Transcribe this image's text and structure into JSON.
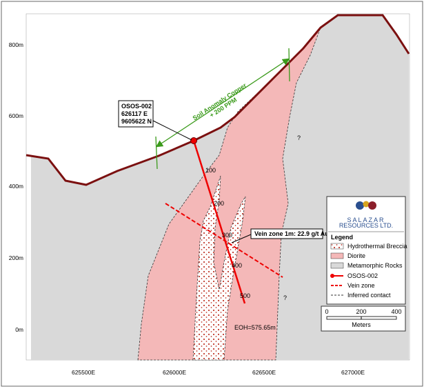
{
  "axes": {
    "y_labels": [
      "800m",
      "600m",
      "400m",
      "200m",
      "0m"
    ],
    "x_labels": [
      "625500E",
      "626000E",
      "626500E",
      "627000E"
    ]
  },
  "collar": {
    "lines": [
      "OSOS-002",
      "626117 E",
      "9605622 N"
    ]
  },
  "soil_anomaly": {
    "lines": [
      "Soil Anomaly Copper",
      "+ 200 PPM"
    ]
  },
  "vein_label": "Vein zone 1m: 22.9 g/t Au",
  "eoh_label": "EOH=575.65m",
  "depth_labels": [
    "100",
    "200",
    "300",
    "400",
    "500"
  ],
  "question_marks": [
    "?",
    "?"
  ],
  "legend": {
    "company": "SALAZAR",
    "company_sub": "RESOURCES LTD.",
    "title": "Legend",
    "items": [
      "Hydrothermal Breccia",
      "Diorite",
      "Metamorphic Rocks",
      "OSOS-002",
      "Vein zone",
      "Inferred contact"
    ]
  },
  "scale": {
    "ticks": [
      "0",
      "200",
      "400"
    ],
    "unit": "Meters"
  }
}
